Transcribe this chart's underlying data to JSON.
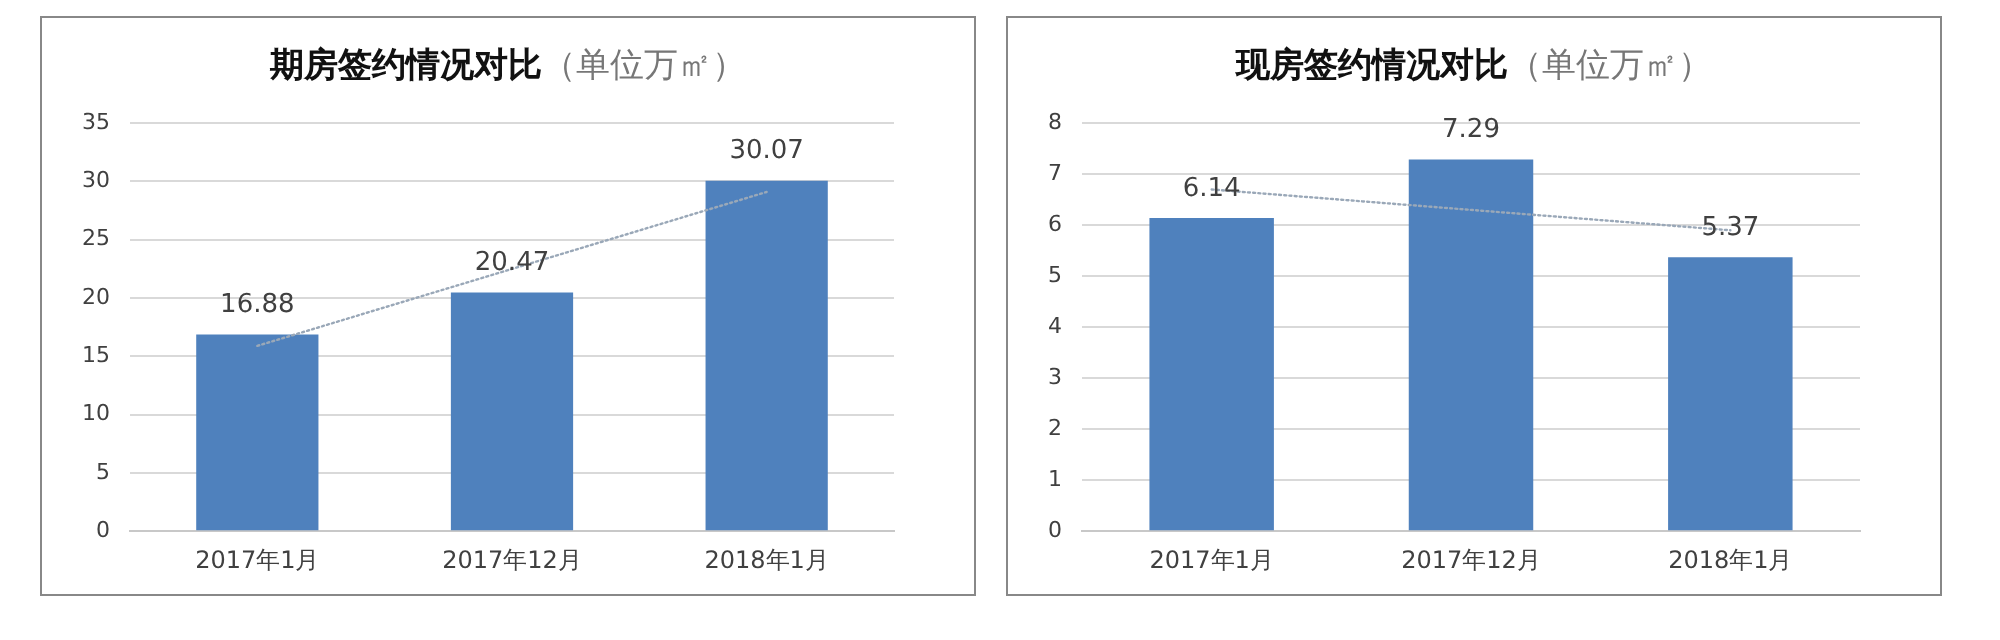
{
  "chart_data": [
    {
      "type": "bar",
      "title": "期房签约情况对比",
      "subtitle": "（单位万㎡）",
      "categories": [
        "2017年1月",
        "2017年12月",
        "2018年1月"
      ],
      "ylim": [
        0,
        35
      ],
      "yticks": [
        0,
        5,
        10,
        15,
        20,
        25,
        30,
        35
      ],
      "grid": "y",
      "legend": false,
      "series": [
        {
          "color": "#4f81bd",
          "values": [
            16.88,
            20.47,
            30.07
          ],
          "value_labels": [
            "16.88",
            "20.47",
            "30.07"
          ]
        },
        {
          "type": "line",
          "color": "#9aa8b8",
          "x": [
            "2017年1月",
            "2017年12月",
            "2018年1月"
          ],
          "values": [
            15.9,
            22.5,
            29.1
          ],
          "line_style": "dotted",
          "marker": "none"
        }
      ]
    },
    {
      "type": "bar",
      "title": "现房签约情况对比",
      "subtitle": "（单位万㎡）",
      "categories": [
        "2017年1月",
        "2017年12月",
        "2018年1月"
      ],
      "ylim": [
        0,
        8
      ],
      "yticks": [
        0,
        1,
        2,
        3,
        4,
        5,
        6,
        7,
        8
      ],
      "grid": "y",
      "legend": false,
      "series": [
        {
          "color": "#4f81bd",
          "values": [
            6.14,
            7.29,
            5.37
          ],
          "value_labels": [
            "6.14",
            "7.29",
            "5.37"
          ]
        },
        {
          "type": "line",
          "color": "#9aa8b8",
          "x": [
            "2017年1月",
            "2017年12月",
            "2018年1月"
          ],
          "values": [
            6.7,
            6.3,
            5.9
          ],
          "line_style": "dotted",
          "marker": "none"
        }
      ]
    }
  ]
}
